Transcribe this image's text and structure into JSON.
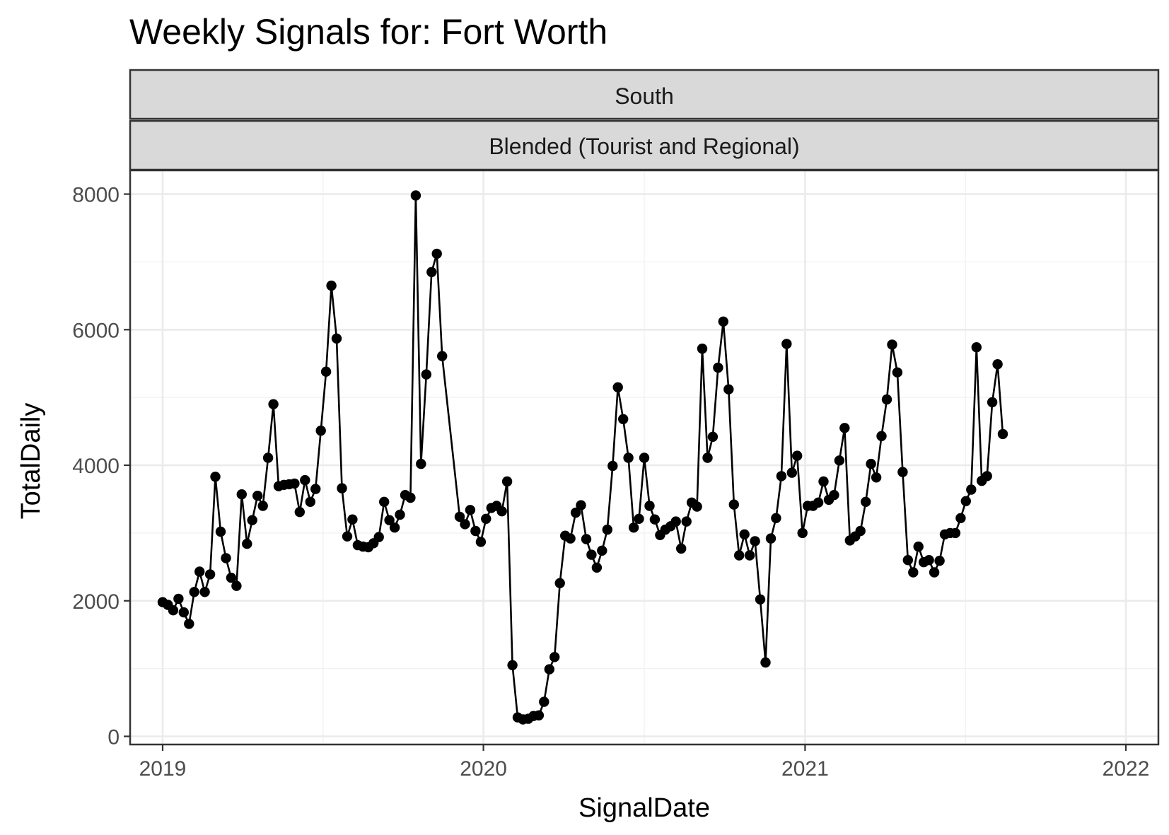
{
  "chart_data": {
    "type": "line",
    "title": "Weekly Signals for: Fort Worth",
    "facet_labels": [
      "South",
      "Blended (Tourist and Regional)"
    ],
    "xlabel": "SignalDate",
    "ylabel": "TotalDaily",
    "x_ticks": [
      "2019",
      "2020",
      "2021",
      "2022"
    ],
    "y_ticks": [
      "0",
      "2000",
      "4000",
      "6000",
      "8000"
    ],
    "xlim": [
      "2018-11-25",
      "2022-02-07"
    ],
    "ylim": [
      -120,
      8350
    ],
    "grid": true,
    "markers": true,
    "series": [
      {
        "color": "#000000",
        "points": [
          [
            "2019-01-01",
            1980
          ],
          [
            "2019-01-07",
            1940
          ],
          [
            "2019-01-13",
            1860
          ],
          [
            "2019-01-19",
            2030
          ],
          [
            "2019-01-25",
            1830
          ],
          [
            "2019-01-31",
            1660
          ],
          [
            "2019-02-06",
            2130
          ],
          [
            "2019-02-12",
            2430
          ],
          [
            "2019-02-18",
            2130
          ],
          [
            "2019-02-24",
            2390
          ],
          [
            "2019-03-02",
            3830
          ],
          [
            "2019-03-08",
            3020
          ],
          [
            "2019-03-14",
            2630
          ],
          [
            "2019-03-20",
            2340
          ],
          [
            "2019-03-26",
            2220
          ],
          [
            "2019-04-01",
            3570
          ],
          [
            "2019-04-07",
            2840
          ],
          [
            "2019-04-13",
            3190
          ],
          [
            "2019-04-19",
            3550
          ],
          [
            "2019-04-25",
            3400
          ],
          [
            "2019-05-01",
            4110
          ],
          [
            "2019-05-07",
            4900
          ],
          [
            "2019-05-13",
            3690
          ],
          [
            "2019-05-19",
            3710
          ],
          [
            "2019-05-25",
            3720
          ],
          [
            "2019-05-31",
            3730
          ],
          [
            "2019-06-06",
            3310
          ],
          [
            "2019-06-12",
            3780
          ],
          [
            "2019-06-18",
            3460
          ],
          [
            "2019-06-24",
            3650
          ],
          [
            "2019-06-30",
            4510
          ],
          [
            "2019-07-06",
            5380
          ],
          [
            "2019-07-12",
            6650
          ],
          [
            "2019-07-18",
            5870
          ],
          [
            "2019-07-24",
            3660
          ],
          [
            "2019-07-30",
            2950
          ],
          [
            "2019-08-05",
            3200
          ],
          [
            "2019-08-11",
            2820
          ],
          [
            "2019-08-17",
            2800
          ],
          [
            "2019-08-23",
            2790
          ],
          [
            "2019-08-29",
            2850
          ],
          [
            "2019-09-04",
            2940
          ],
          [
            "2019-09-10",
            3460
          ],
          [
            "2019-09-16",
            3190
          ],
          [
            "2019-09-22",
            3080
          ],
          [
            "2019-09-28",
            3270
          ],
          [
            "2019-10-04",
            3560
          ],
          [
            "2019-10-10",
            3520
          ],
          [
            "2019-10-16",
            7980
          ],
          [
            "2019-10-22",
            4020
          ],
          [
            "2019-10-28",
            5340
          ],
          [
            "2019-11-03",
            6850
          ],
          [
            "2019-11-09",
            7120
          ],
          [
            "2019-11-15",
            5610
          ],
          [
            "2019-12-05",
            3240
          ],
          [
            "2019-12-11",
            3130
          ],
          [
            "2019-12-17",
            3340
          ],
          [
            "2019-12-23",
            3030
          ],
          [
            "2019-12-29",
            2870
          ],
          [
            "2020-01-04",
            3210
          ],
          [
            "2020-01-10",
            3370
          ],
          [
            "2020-01-16",
            3400
          ],
          [
            "2020-01-22",
            3320
          ],
          [
            "2020-01-28",
            3760
          ],
          [
            "2020-02-03",
            1050
          ],
          [
            "2020-02-09",
            280
          ],
          [
            "2020-02-15",
            250
          ],
          [
            "2020-02-21",
            260
          ],
          [
            "2020-02-27",
            300
          ],
          [
            "2020-03-04",
            310
          ],
          [
            "2020-03-10",
            510
          ],
          [
            "2020-03-16",
            990
          ],
          [
            "2020-03-22",
            1170
          ],
          [
            "2020-03-28",
            2260
          ],
          [
            "2020-04-03",
            2960
          ],
          [
            "2020-04-09",
            2920
          ],
          [
            "2020-04-15",
            3300
          ],
          [
            "2020-04-21",
            3410
          ],
          [
            "2020-04-27",
            2910
          ],
          [
            "2020-05-03",
            2680
          ],
          [
            "2020-05-09",
            2490
          ],
          [
            "2020-05-15",
            2740
          ],
          [
            "2020-05-21",
            3050
          ],
          [
            "2020-05-27",
            3990
          ],
          [
            "2020-06-02",
            5150
          ],
          [
            "2020-06-08",
            4680
          ],
          [
            "2020-06-14",
            4110
          ],
          [
            "2020-06-20",
            3080
          ],
          [
            "2020-06-26",
            3210
          ],
          [
            "2020-07-02",
            4110
          ],
          [
            "2020-07-08",
            3400
          ],
          [
            "2020-07-14",
            3200
          ],
          [
            "2020-07-20",
            2970
          ],
          [
            "2020-07-26",
            3050
          ],
          [
            "2020-08-01",
            3100
          ],
          [
            "2020-08-07",
            3170
          ],
          [
            "2020-08-13",
            2770
          ],
          [
            "2020-08-19",
            3170
          ],
          [
            "2020-08-25",
            3450
          ],
          [
            "2020-08-31",
            3390
          ],
          [
            "2020-09-06",
            5720
          ],
          [
            "2020-09-12",
            4110
          ],
          [
            "2020-09-18",
            4420
          ],
          [
            "2020-09-24",
            5440
          ],
          [
            "2020-09-30",
            6120
          ],
          [
            "2020-10-06",
            5120
          ],
          [
            "2020-10-12",
            3420
          ],
          [
            "2020-10-18",
            2670
          ],
          [
            "2020-10-24",
            2980
          ],
          [
            "2020-10-30",
            2670
          ],
          [
            "2020-11-05",
            2880
          ],
          [
            "2020-11-11",
            2020
          ],
          [
            "2020-11-17",
            1090
          ],
          [
            "2020-11-23",
            2920
          ],
          [
            "2020-11-29",
            3220
          ],
          [
            "2020-12-05",
            3840
          ],
          [
            "2020-12-11",
            5790
          ],
          [
            "2020-12-17",
            3890
          ],
          [
            "2020-12-23",
            4140
          ],
          [
            "2020-12-29",
            3000
          ],
          [
            "2021-01-04",
            3400
          ],
          [
            "2021-01-10",
            3400
          ],
          [
            "2021-01-16",
            3450
          ],
          [
            "2021-01-22",
            3760
          ],
          [
            "2021-01-28",
            3490
          ],
          [
            "2021-02-03",
            3560
          ],
          [
            "2021-02-09",
            4070
          ],
          [
            "2021-02-15",
            4550
          ],
          [
            "2021-02-21",
            2890
          ],
          [
            "2021-02-27",
            2950
          ],
          [
            "2021-03-05",
            3030
          ],
          [
            "2021-03-11",
            3460
          ],
          [
            "2021-03-17",
            4020
          ],
          [
            "2021-03-23",
            3820
          ],
          [
            "2021-03-29",
            4430
          ],
          [
            "2021-04-04",
            4970
          ],
          [
            "2021-04-10",
            5780
          ],
          [
            "2021-04-16",
            5370
          ],
          [
            "2021-04-22",
            3900
          ],
          [
            "2021-04-28",
            2600
          ],
          [
            "2021-05-04",
            2420
          ],
          [
            "2021-05-10",
            2800
          ],
          [
            "2021-05-16",
            2570
          ],
          [
            "2021-05-22",
            2600
          ],
          [
            "2021-05-28",
            2420
          ],
          [
            "2021-06-03",
            2590
          ],
          [
            "2021-06-09",
            2980
          ],
          [
            "2021-06-15",
            3000
          ],
          [
            "2021-06-21",
            3000
          ],
          [
            "2021-06-27",
            3220
          ],
          [
            "2021-07-03",
            3470
          ],
          [
            "2021-07-09",
            3640
          ],
          [
            "2021-07-15",
            5740
          ],
          [
            "2021-07-21",
            3770
          ],
          [
            "2021-07-27",
            3840
          ],
          [
            "2021-08-02",
            4930
          ],
          [
            "2021-08-08",
            5490
          ],
          [
            "2021-08-14",
            4460
          ]
        ]
      }
    ]
  }
}
